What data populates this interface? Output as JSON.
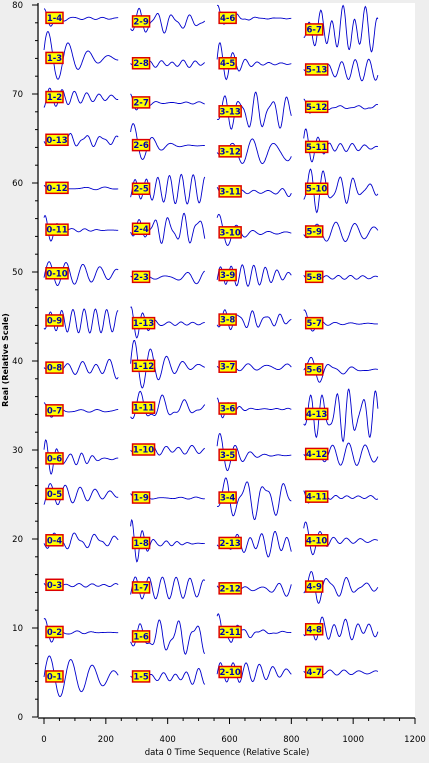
{
  "chart_data": {
    "type": "line",
    "title": "",
    "xlabel": "data 0 Time Sequence (Relative Scale)",
    "ylabel": "Real (Relative Scale)",
    "xlim": [
      0,
      1200
    ],
    "ylim": [
      0,
      80
    ],
    "x_ticks": [
      0,
      200,
      400,
      600,
      800,
      1000,
      1200
    ],
    "y_ticks": [
      0,
      10,
      20,
      30,
      40,
      50,
      60,
      70,
      80
    ],
    "grid": false,
    "legend": "none",
    "colors": {
      "line": "#0000cc",
      "label_fill": "#ffff00",
      "label_border": "#dd0000",
      "label_text": "#0000aa",
      "background": "#ffffff",
      "frame": "#eeeeee"
    },
    "series": [
      {
        "name": "0-1",
        "x_start": 0,
        "x_end": 240,
        "y": 4.5
      },
      {
        "name": "0-2",
        "x_start": 0,
        "x_end": 240,
        "y": 9.5
      },
      {
        "name": "0-3",
        "x_start": 0,
        "x_end": 240,
        "y": 14.8
      },
      {
        "name": "0-4",
        "x_start": 0,
        "x_end": 240,
        "y": 19.8
      },
      {
        "name": "0-5",
        "x_start": 0,
        "x_end": 240,
        "y": 25.0
      },
      {
        "name": "0-6",
        "x_start": 0,
        "x_end": 240,
        "y": 29.0
      },
      {
        "name": "0-7",
        "x_start": 0,
        "x_end": 240,
        "y": 34.4
      },
      {
        "name": "0-8",
        "x_start": 0,
        "x_end": 240,
        "y": 39.2
      },
      {
        "name": "0-9",
        "x_start": 0,
        "x_end": 240,
        "y": 44.5
      },
      {
        "name": "0-10",
        "x_start": 0,
        "x_end": 240,
        "y": 49.8
      },
      {
        "name": "0-11",
        "x_start": 0,
        "x_end": 240,
        "y": 54.7
      },
      {
        "name": "0-12",
        "x_start": 0,
        "x_end": 240,
        "y": 59.4
      },
      {
        "name": "0-13",
        "x_start": 0,
        "x_end": 240,
        "y": 64.8
      },
      {
        "name": "1-2",
        "x_start": 0,
        "x_end": 240,
        "y": 69.6
      },
      {
        "name": "1-3",
        "x_start": 0,
        "x_end": 240,
        "y": 74.0
      },
      {
        "name": "1-4",
        "x_start": 0,
        "x_end": 240,
        "y": 78.5
      },
      {
        "name": "1-5",
        "x_start": 280,
        "x_end": 520,
        "y": 4.5
      },
      {
        "name": "1-6",
        "x_start": 280,
        "x_end": 520,
        "y": 9.0
      },
      {
        "name": "1-7",
        "x_start": 280,
        "x_end": 520,
        "y": 14.5
      },
      {
        "name": "1-8",
        "x_start": 280,
        "x_end": 520,
        "y": 19.5
      },
      {
        "name": "1-9",
        "x_start": 280,
        "x_end": 520,
        "y": 24.6
      },
      {
        "name": "1-10",
        "x_start": 280,
        "x_end": 520,
        "y": 30.0
      },
      {
        "name": "1-11",
        "x_start": 280,
        "x_end": 520,
        "y": 34.7
      },
      {
        "name": "1-12",
        "x_start": 280,
        "x_end": 520,
        "y": 39.4
      },
      {
        "name": "1-13",
        "x_start": 280,
        "x_end": 520,
        "y": 44.2
      },
      {
        "name": "2-3",
        "x_start": 280,
        "x_end": 520,
        "y": 49.4
      },
      {
        "name": "2-4",
        "x_start": 280,
        "x_end": 520,
        "y": 54.8
      },
      {
        "name": "2-5",
        "x_start": 280,
        "x_end": 520,
        "y": 59.3
      },
      {
        "name": "2-6",
        "x_start": 280,
        "x_end": 520,
        "y": 64.2
      },
      {
        "name": "2-7",
        "x_start": 280,
        "x_end": 520,
        "y": 69.0
      },
      {
        "name": "2-8",
        "x_start": 280,
        "x_end": 520,
        "y": 73.4
      },
      {
        "name": "2-9",
        "x_start": 280,
        "x_end": 520,
        "y": 78.1
      },
      {
        "name": "2-10",
        "x_start": 560,
        "x_end": 800,
        "y": 5.0
      },
      {
        "name": "2-11",
        "x_start": 560,
        "x_end": 800,
        "y": 9.5
      },
      {
        "name": "2-12",
        "x_start": 560,
        "x_end": 800,
        "y": 14.4
      },
      {
        "name": "2-13",
        "x_start": 560,
        "x_end": 800,
        "y": 19.5
      },
      {
        "name": "3-4",
        "x_start": 560,
        "x_end": 800,
        "y": 24.6
      },
      {
        "name": "3-5",
        "x_start": 560,
        "x_end": 800,
        "y": 29.4
      },
      {
        "name": "3-6",
        "x_start": 560,
        "x_end": 800,
        "y": 34.6
      },
      {
        "name": "3-7",
        "x_start": 560,
        "x_end": 800,
        "y": 39.3
      },
      {
        "name": "3-8",
        "x_start": 560,
        "x_end": 800,
        "y": 44.6
      },
      {
        "name": "3-9",
        "x_start": 560,
        "x_end": 800,
        "y": 49.6
      },
      {
        "name": "3-10",
        "x_start": 560,
        "x_end": 800,
        "y": 54.4
      },
      {
        "name": "3-11",
        "x_start": 560,
        "x_end": 800,
        "y": 59.0
      },
      {
        "name": "3-12",
        "x_start": 560,
        "x_end": 800,
        "y": 63.5
      },
      {
        "name": "3-13",
        "x_start": 560,
        "x_end": 800,
        "y": 68.0
      },
      {
        "name": "4-5",
        "x_start": 560,
        "x_end": 800,
        "y": 73.4
      },
      {
        "name": "4-6",
        "x_start": 560,
        "x_end": 800,
        "y": 78.5
      },
      {
        "name": "4-7",
        "x_start": 840,
        "x_end": 1080,
        "y": 5.0
      },
      {
        "name": "4-8",
        "x_start": 840,
        "x_end": 1080,
        "y": 9.8
      },
      {
        "name": "4-9",
        "x_start": 840,
        "x_end": 1080,
        "y": 14.6
      },
      {
        "name": "4-10",
        "x_start": 840,
        "x_end": 1080,
        "y": 19.8
      },
      {
        "name": "4-11",
        "x_start": 840,
        "x_end": 1080,
        "y": 24.7
      },
      {
        "name": "4-12",
        "x_start": 840,
        "x_end": 1080,
        "y": 29.5
      },
      {
        "name": "4-13",
        "x_start": 840,
        "x_end": 1080,
        "y": 34.0
      },
      {
        "name": "5-6",
        "x_start": 840,
        "x_end": 1080,
        "y": 39.0
      },
      {
        "name": "5-7",
        "x_start": 840,
        "x_end": 1080,
        "y": 44.2
      },
      {
        "name": "5-8",
        "x_start": 840,
        "x_end": 1080,
        "y": 49.4
      },
      {
        "name": "5-9",
        "x_start": 840,
        "x_end": 1080,
        "y": 54.5
      },
      {
        "name": "5-10",
        "x_start": 840,
        "x_end": 1080,
        "y": 59.3
      },
      {
        "name": "5-11",
        "x_start": 840,
        "x_end": 1080,
        "y": 64.0
      },
      {
        "name": "5-12",
        "x_start": 840,
        "x_end": 1080,
        "y": 68.5
      },
      {
        "name": "5-13",
        "x_start": 840,
        "x_end": 1080,
        "y": 72.7
      },
      {
        "name": "6-7",
        "x_start": 840,
        "x_end": 1080,
        "y": 77.2
      }
    ]
  }
}
